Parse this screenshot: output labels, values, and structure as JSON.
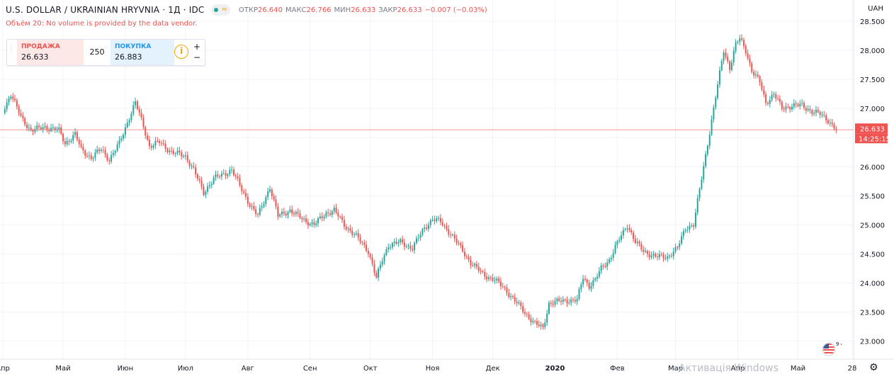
{
  "header": {
    "symbol": "U.S. DOLLAR / UKRAINIAN HRYVNIA · 1Д · IDC",
    "wave_icon": "≈",
    "ohlc": [
      {
        "label": "ОТКР",
        "value": "26.640"
      },
      {
        "label": "МАКС",
        "value": "26.766"
      },
      {
        "label": "МИН",
        "value": "26.633"
      },
      {
        "label": "ЗАКР",
        "value": "26.633"
      },
      {
        "label": "",
        "value": "−0.007 (−0.03%)"
      }
    ]
  },
  "warning": "Объём 20: No volume is provided by the data vendor.",
  "trade": {
    "sell_label": "ПРОДАЖА",
    "sell_price": "26.633",
    "quantity": "250",
    "buy_label": "ПОКУПКА",
    "buy_price": "26.883",
    "info_icon": "i",
    "plus": "+",
    "minus": "−"
  },
  "watermark": "Активація Windows",
  "flag_label": "9 4",
  "settings_icon": "gear-icon",
  "colors": {
    "up": "#26a69a",
    "down": "#ef5350",
    "price_line": "#ef5350",
    "grid": "#f0f3fa"
  },
  "chart_data": {
    "type": "candlestick",
    "currency": "UAH",
    "ylim": [
      22.9,
      28.65
    ],
    "yticks": [
      "28.500",
      "28.000",
      "27.500",
      "27.000",
      "26.500",
      "26.000",
      "25.500",
      "25.000",
      "24.500",
      "24.000",
      "23.500",
      "23.000"
    ],
    "xticks": [
      "Апр",
      "Май",
      "Июн",
      "Июл",
      "Авг",
      "Сен",
      "Окт",
      "Ноя",
      "Дек",
      "2020",
      "Фев",
      "Мар",
      "Апр",
      "Май",
      "28"
    ],
    "last_price": "26.633",
    "last_price_value": 26.633,
    "countdown": "14:25:15",
    "close_path": [
      {
        "date": "2019-04-01",
        "close": 26.95
      },
      {
        "date": "2019-04-05",
        "close": 27.25
      },
      {
        "date": "2019-04-10",
        "close": 26.85
      },
      {
        "date": "2019-04-15",
        "close": 26.62
      },
      {
        "date": "2019-04-22",
        "close": 26.68
      },
      {
        "date": "2019-04-29",
        "close": 26.62
      },
      {
        "date": "2019-05-02",
        "close": 26.4
      },
      {
        "date": "2019-05-07",
        "close": 26.55
      },
      {
        "date": "2019-05-10",
        "close": 26.3
      },
      {
        "date": "2019-05-15",
        "close": 26.15
      },
      {
        "date": "2019-05-20",
        "close": 26.3
      },
      {
        "date": "2019-05-24",
        "close": 26.12
      },
      {
        "date": "2019-05-29",
        "close": 26.4
      },
      {
        "date": "2019-06-03",
        "close": 26.85
      },
      {
        "date": "2019-06-06",
        "close": 27.1
      },
      {
        "date": "2019-06-10",
        "close": 26.7
      },
      {
        "date": "2019-06-13",
        "close": 26.35
      },
      {
        "date": "2019-06-18",
        "close": 26.42
      },
      {
        "date": "2019-06-24",
        "close": 26.25
      },
      {
        "date": "2019-07-01",
        "close": 26.18
      },
      {
        "date": "2019-07-05",
        "close": 25.95
      },
      {
        "date": "2019-07-10",
        "close": 25.55
      },
      {
        "date": "2019-07-15",
        "close": 25.8
      },
      {
        "date": "2019-07-19",
        "close": 25.85
      },
      {
        "date": "2019-07-24",
        "close": 25.95
      },
      {
        "date": "2019-07-29",
        "close": 25.6
      },
      {
        "date": "2019-08-02",
        "close": 25.35
      },
      {
        "date": "2019-08-06",
        "close": 25.15
      },
      {
        "date": "2019-08-12",
        "close": 25.65
      },
      {
        "date": "2019-08-16",
        "close": 25.15
      },
      {
        "date": "2019-08-22",
        "close": 25.25
      },
      {
        "date": "2019-08-28",
        "close": 25.1
      },
      {
        "date": "2019-09-03",
        "close": 25.0
      },
      {
        "date": "2019-09-09",
        "close": 25.2
      },
      {
        "date": "2019-09-13",
        "close": 25.25
      },
      {
        "date": "2019-09-18",
        "close": 25.0
      },
      {
        "date": "2019-09-24",
        "close": 24.8
      },
      {
        "date": "2019-09-30",
        "close": 24.55
      },
      {
        "date": "2019-10-04",
        "close": 24.08
      },
      {
        "date": "2019-10-07",
        "close": 24.4
      },
      {
        "date": "2019-10-10",
        "close": 24.65
      },
      {
        "date": "2019-10-16",
        "close": 24.7
      },
      {
        "date": "2019-10-22",
        "close": 24.6
      },
      {
        "date": "2019-10-28",
        "close": 24.95
      },
      {
        "date": "2019-11-01",
        "close": 25.1
      },
      {
        "date": "2019-11-05",
        "close": 25.05
      },
      {
        "date": "2019-11-10",
        "close": 24.85
      },
      {
        "date": "2019-11-15",
        "close": 24.6
      },
      {
        "date": "2019-11-20",
        "close": 24.35
      },
      {
        "date": "2019-11-26",
        "close": 24.15
      },
      {
        "date": "2019-12-02",
        "close": 24.05
      },
      {
        "date": "2019-12-07",
        "close": 23.9
      },
      {
        "date": "2019-12-13",
        "close": 23.65
      },
      {
        "date": "2019-12-18",
        "close": 23.45
      },
      {
        "date": "2019-12-22",
        "close": 23.3
      },
      {
        "date": "2019-12-26",
        "close": 23.22
      },
      {
        "date": "2019-12-29",
        "close": 23.65
      },
      {
        "date": "2020-01-06",
        "close": 23.7
      },
      {
        "date": "2020-01-12",
        "close": 23.7
      },
      {
        "date": "2020-01-15",
        "close": 24.1
      },
      {
        "date": "2020-01-18",
        "close": 23.95
      },
      {
        "date": "2020-01-21",
        "close": 24.05
      },
      {
        "date": "2020-01-24",
        "close": 24.25
      },
      {
        "date": "2020-01-28",
        "close": 24.4
      },
      {
        "date": "2020-02-02",
        "close": 24.75
      },
      {
        "date": "2020-02-06",
        "close": 25.0
      },
      {
        "date": "2020-02-10",
        "close": 24.7
      },
      {
        "date": "2020-02-14",
        "close": 24.55
      },
      {
        "date": "2020-02-20",
        "close": 24.45
      },
      {
        "date": "2020-02-26",
        "close": 24.45
      },
      {
        "date": "2020-03-02",
        "close": 24.6
      },
      {
        "date": "2020-03-06",
        "close": 24.95
      },
      {
        "date": "2020-03-10",
        "close": 25.0
      },
      {
        "date": "2020-03-13",
        "close": 25.6
      },
      {
        "date": "2020-03-16",
        "close": 26.2
      },
      {
        "date": "2020-03-19",
        "close": 26.8
      },
      {
        "date": "2020-03-22",
        "close": 27.4
      },
      {
        "date": "2020-03-25",
        "close": 28.0
      },
      {
        "date": "2020-03-28",
        "close": 27.7
      },
      {
        "date": "2020-03-31",
        "close": 28.1
      },
      {
        "date": "2020-04-02",
        "close": 28.2
      },
      {
        "date": "2020-04-05",
        "close": 28.0
      },
      {
        "date": "2020-04-08",
        "close": 27.65
      },
      {
        "date": "2020-04-12",
        "close": 27.45
      },
      {
        "date": "2020-04-15",
        "close": 27.1
      },
      {
        "date": "2020-04-19",
        "close": 27.25
      },
      {
        "date": "2020-04-23",
        "close": 27.0
      },
      {
        "date": "2020-04-28",
        "close": 27.05
      },
      {
        "date": "2020-05-03",
        "close": 27.05
      },
      {
        "date": "2020-05-08",
        "close": 26.95
      },
      {
        "date": "2020-05-12",
        "close": 26.9
      },
      {
        "date": "2020-05-16",
        "close": 26.8
      },
      {
        "date": "2020-05-20",
        "close": 26.633
      }
    ]
  }
}
